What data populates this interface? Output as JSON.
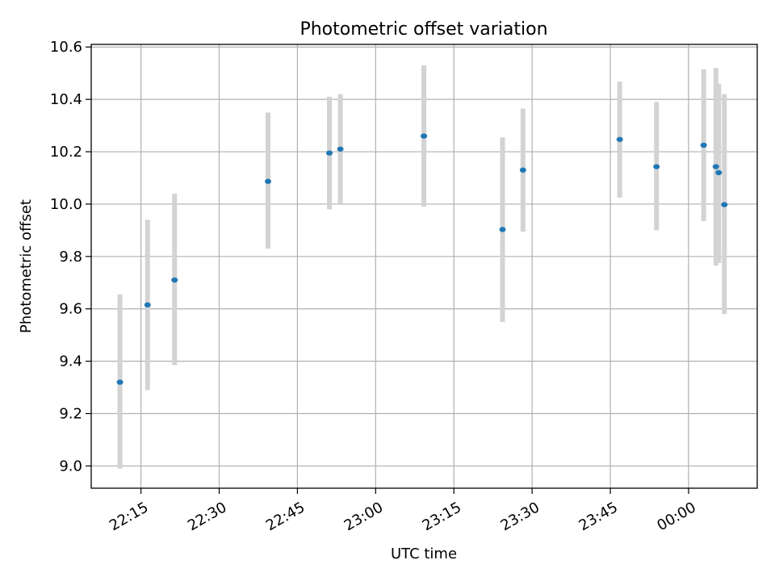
{
  "chart_data": {
    "type": "scatter",
    "title": "Photometric offset variation",
    "xlabel": "UTC time",
    "ylabel": "Photometric offset",
    "x_ticks": [
      "22:15",
      "22:30",
      "22:45",
      "23:00",
      "23:15",
      "23:30",
      "23:45",
      "00:00"
    ],
    "y_ticks": [
      "9.0",
      "9.2",
      "9.4",
      "9.6",
      "9.8",
      "10.0",
      "10.2",
      "10.4",
      "10.6"
    ],
    "xlim": [
      "22:05:28",
      "00:13:10"
    ],
    "ylim": [
      8.915,
      10.61
    ],
    "grid": true,
    "points": [
      {
        "x": "22:10:58",
        "y": 9.32,
        "yerr_low": 8.99,
        "yerr_high": 9.655
      },
      {
        "x": "22:16:16",
        "y": 9.615,
        "yerr_low": 9.29,
        "yerr_high": 9.94
      },
      {
        "x": "22:21:27",
        "y": 9.71,
        "yerr_low": 9.385,
        "yerr_high": 10.04
      },
      {
        "x": "22:39:22",
        "y": 10.087,
        "yerr_low": 9.83,
        "yerr_high": 10.35
      },
      {
        "x": "22:51:08",
        "y": 10.195,
        "yerr_low": 9.98,
        "yerr_high": 10.41
      },
      {
        "x": "22:53:14",
        "y": 10.21,
        "yerr_low": 10.0,
        "yerr_high": 10.42
      },
      {
        "x": "23:09:15",
        "y": 10.26,
        "yerr_low": 9.99,
        "yerr_high": 10.53
      },
      {
        "x": "23:24:20",
        "y": 9.903,
        "yerr_low": 9.55,
        "yerr_high": 10.255
      },
      {
        "x": "23:28:15",
        "y": 10.13,
        "yerr_low": 9.895,
        "yerr_high": 10.365
      },
      {
        "x": "23:46:48",
        "y": 10.247,
        "yerr_low": 10.025,
        "yerr_high": 10.468
      },
      {
        "x": "23:53:51",
        "y": 10.143,
        "yerr_low": 9.9,
        "yerr_high": 10.39
      },
      {
        "x": "00:02:54",
        "y": 10.225,
        "yerr_low": 9.935,
        "yerr_high": 10.515
      },
      {
        "x": "00:05:14",
        "y": 10.143,
        "yerr_low": 9.765,
        "yerr_high": 10.52
      },
      {
        "x": "00:05:47",
        "y": 10.12,
        "yerr_low": 9.775,
        "yerr_high": 10.46
      },
      {
        "x": "00:06:52",
        "y": 9.998,
        "yerr_low": 9.58,
        "yerr_high": 10.42
      }
    ],
    "colors": {
      "marker": "#1f77b4",
      "errorbar": "#d3d3d3",
      "grid": "#b0b0b0",
      "axes": "#000000"
    }
  }
}
